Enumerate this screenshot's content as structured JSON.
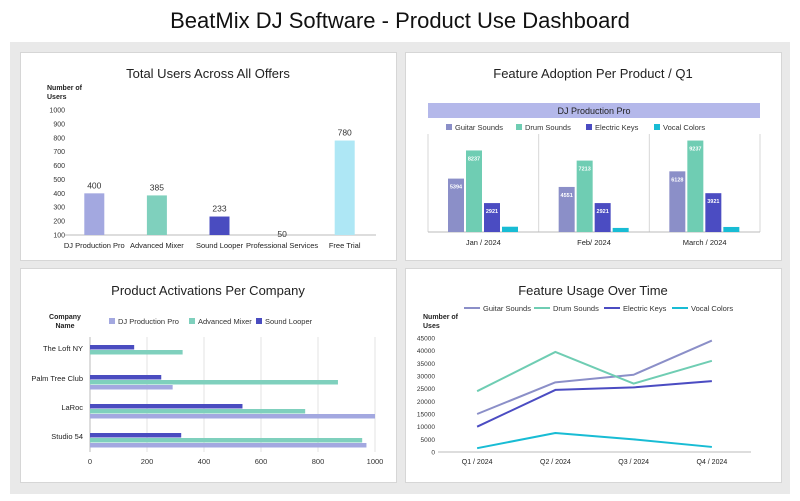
{
  "dashboard_title": "BeatMix DJ Software - Product Use Dashboard",
  "colors": {
    "dj_pro": "#a3a8e0",
    "adv_mixer": "#7fd0bd",
    "sound_looper": "#4a4cc0",
    "pro_services": "#18c4d6",
    "free_trial": "#aee7f5",
    "guitar": "#8b8fc8",
    "drum": "#6fcdb3",
    "keys": "#4b4cc2",
    "vocal": "#18bcd4",
    "header_band": "#b4b8ea"
  },
  "chart_data": [
    {
      "type": "bar",
      "title": "Total Users Across All Offers",
      "ylabel": "Number of Users",
      "ylim": [
        100,
        1000
      ],
      "yticks": [
        100,
        200,
        300,
        400,
        500,
        600,
        700,
        800,
        900,
        1000
      ],
      "categories": [
        "DJ Production Pro",
        "Advanced Mixer",
        "Sound Looper",
        "Professional Services",
        "Free Trial"
      ],
      "values": [
        400,
        385,
        233,
        50,
        780
      ],
      "labels": [
        "400",
        "385",
        "233",
        "50",
        "780"
      ]
    },
    {
      "type": "bar",
      "title": "Feature Adoption Per Product / Q1",
      "subtitle": "DJ Production Pro",
      "categories": [
        "Jan / 2024",
        "Feb/ 2024",
        "March / 2024"
      ],
      "ylim": [
        0,
        10000
      ],
      "series": [
        {
          "name": "Guitar Sounds",
          "values": [
            5394,
            4551,
            6128
          ],
          "labels": [
            "5394",
            "4551",
            "6128"
          ]
        },
        {
          "name": "Drum Sounds",
          "values": [
            8237,
            7213,
            9237
          ],
          "labels": [
            "8237",
            "7213",
            "9237"
          ]
        },
        {
          "name": "Electric Keys",
          "values": [
            2921,
            2921,
            3921
          ],
          "labels": [
            "2921",
            "2921",
            "3921"
          ]
        },
        {
          "name": "Vocal Colors",
          "values": [
            533,
            411,
            509
          ],
          "labels": [
            "533",
            "411",
            "509"
          ]
        }
      ]
    },
    {
      "type": "bar",
      "orientation": "horizontal",
      "title": "Product Activations Per Company",
      "ylabel": "Company Name",
      "xlim": [
        0,
        1000
      ],
      "xticks": [
        "0",
        "200",
        "400",
        "600",
        "800",
        "1000"
      ],
      "categories": [
        "The Loft NY",
        "Palm Tree Club",
        "LaRoc",
        "Studio 54"
      ],
      "series": [
        {
          "name": "DJ Production Pro",
          "values": [
            0,
            290,
            1000,
            970
          ]
        },
        {
          "name": "Advanced Mixer",
          "values": [
            325,
            870,
            755,
            955
          ]
        },
        {
          "name": "Sound Looper",
          "values": [
            155,
            250,
            535,
            320
          ]
        }
      ]
    },
    {
      "type": "line",
      "title": "Feature Usage Over Time",
      "ylabel": "Number of Uses",
      "ylim": [
        0,
        45000
      ],
      "yticks": [
        "0",
        "5000",
        "10000",
        "15000",
        "20000",
        "25000",
        "30000",
        "35000",
        "40000",
        "45000"
      ],
      "categories": [
        "Q1 / 2024",
        "Q2 / 2024",
        "Q3 / 2024",
        "Q4 / 2024"
      ],
      "series": [
        {
          "name": "Guitar Sounds",
          "values": [
            15000,
            27500,
            30500,
            44000
          ]
        },
        {
          "name": "Drum Sounds",
          "values": [
            24000,
            39500,
            27000,
            36000
          ]
        },
        {
          "name": "Electric Keys",
          "values": [
            10000,
            24500,
            25500,
            28000
          ]
        },
        {
          "name": "Vocal Colors",
          "values": [
            1500,
            7500,
            5000,
            2000
          ]
        }
      ]
    }
  ]
}
